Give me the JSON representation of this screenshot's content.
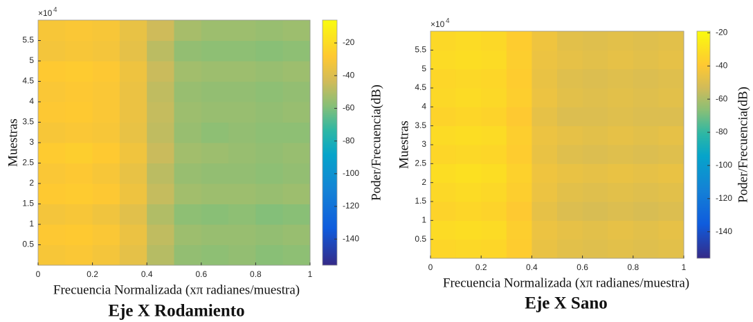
{
  "chart_data": [
    {
      "type": "spectrogram",
      "title": "Eje X Rodamiento",
      "x_label": "Frecuencia Normalizada  (xπ radianes/muestra)",
      "y_label": "Muestras",
      "colorbar_label": "Poder/Frecuencia(dB)",
      "y_exponent_label": {
        "base": "×10",
        "exponent": "4"
      },
      "xlim": [
        0,
        1
      ],
      "xticks": [
        0,
        0.2,
        0.4,
        0.6,
        0.8,
        1
      ],
      "ylim": [
        0,
        60000
      ],
      "yticks": [
        {
          "value": 5000,
          "label": "0.5"
        },
        {
          "value": 10000,
          "label": "1"
        },
        {
          "value": 15000,
          "label": "1.5"
        },
        {
          "value": 20000,
          "label": "2"
        },
        {
          "value": 25000,
          "label": "2.5"
        },
        {
          "value": 30000,
          "label": "3"
        },
        {
          "value": 35000,
          "label": "3.5"
        },
        {
          "value": 40000,
          "label": "4"
        },
        {
          "value": 45000,
          "label": "4.5"
        },
        {
          "value": 50000,
          "label": "5"
        },
        {
          "value": 55000,
          "label": "5.5"
        }
      ],
      "clim": [
        -156,
        -6
      ],
      "cticks": [
        -20,
        -40,
        -60,
        -80,
        -100,
        -120,
        -140
      ],
      "colormap": "parula",
      "xbins": [
        0,
        0.1,
        0.2,
        0.3,
        0.4,
        0.5,
        0.6,
        0.7,
        0.8,
        0.9,
        1
      ],
      "ybins": [
        0,
        5000,
        10000,
        15000,
        20000,
        25000,
        30000,
        35000,
        40000,
        45000,
        50000,
        55000,
        60000
      ],
      "z": [
        [
          -31,
          -30,
          -32,
          -37,
          -49,
          -56,
          -57,
          -56,
          -58,
          -57
        ],
        [
          -29,
          -28,
          -30,
          -35,
          -47,
          -54,
          -55,
          -55,
          -56,
          -55
        ],
        [
          -32,
          -31,
          -33,
          -38,
          -50,
          -57,
          -58,
          -57,
          -59,
          -58
        ],
        [
          -28,
          -27,
          -29,
          -34,
          -46,
          -53,
          -54,
          -54,
          -55,
          -54
        ],
        [
          -30,
          -29,
          -31,
          -36,
          -48,
          -55,
          -56,
          -56,
          -57,
          -56
        ],
        [
          -27,
          -26,
          -28,
          -33,
          -45,
          -53,
          -54,
          -55,
          -56,
          -55
        ],
        [
          -31,
          -30,
          -31,
          -36,
          -47,
          -55,
          -57,
          -56,
          -57,
          -57
        ],
        [
          -29,
          -28,
          -30,
          -35,
          -46,
          -54,
          -55,
          -55,
          -56,
          -55
        ],
        [
          -30,
          -29,
          -30,
          -35,
          -47,
          -55,
          -56,
          -56,
          -57,
          -56
        ],
        [
          -28,
          -27,
          -29,
          -34,
          -45,
          -53,
          -54,
          -54,
          -55,
          -54
        ],
        [
          -32,
          -31,
          -32,
          -37,
          -48,
          -56,
          -57,
          -57,
          -58,
          -57
        ],
        [
          -31,
          -30,
          -31,
          -36,
          -44,
          -52,
          -54,
          -54,
          -55,
          -54
        ]
      ]
    },
    {
      "type": "spectrogram",
      "title": "Eje X Sano",
      "x_label": "Frecuencia Normalizada  (xπ radianes/muestra)",
      "y_label": "Muestras",
      "colorbar_label": "Poder/Frecuencia(dB)",
      "y_exponent_label": {
        "base": "×10",
        "exponent": "4"
      },
      "xlim": [
        0,
        1
      ],
      "xticks": [
        0,
        0.2,
        0.4,
        0.6,
        0.8,
        1
      ],
      "ylim": [
        0,
        60000
      ],
      "yticks": [
        {
          "value": 5000,
          "label": "0.5"
        },
        {
          "value": 10000,
          "label": "1"
        },
        {
          "value": 15000,
          "label": "1.5"
        },
        {
          "value": 20000,
          "label": "2"
        },
        {
          "value": 25000,
          "label": "2.5"
        },
        {
          "value": 30000,
          "label": "3"
        },
        {
          "value": 35000,
          "label": "3.5"
        },
        {
          "value": 40000,
          "label": "4"
        },
        {
          "value": 45000,
          "label": "4.5"
        },
        {
          "value": 50000,
          "label": "5"
        },
        {
          "value": 55000,
          "label": "5.5"
        }
      ],
      "clim": [
        -156,
        -19
      ],
      "cticks": [
        -20,
        -40,
        -60,
        -80,
        -100,
        -120,
        -140
      ],
      "colormap": "parula",
      "xbins": [
        0,
        0.1,
        0.2,
        0.3,
        0.4,
        0.5,
        0.6,
        0.7,
        0.8,
        0.9,
        1
      ],
      "ybins": [
        0,
        5000,
        10000,
        15000,
        20000,
        25000,
        30000,
        35000,
        40000,
        45000,
        50000,
        55000,
        60000
      ],
      "z": [
        [
          -34,
          -33,
          -34,
          -38,
          -46,
          -48,
          -49,
          -48,
          -49,
          -48
        ],
        [
          -32,
          -31,
          -32,
          -37,
          -45,
          -47,
          -48,
          -47,
          -48,
          -47
        ],
        [
          -35,
          -34,
          -35,
          -39,
          -47,
          -50,
          -51,
          -50,
          -51,
          -50
        ],
        [
          -33,
          -32,
          -33,
          -37,
          -45,
          -48,
          -49,
          -48,
          -49,
          -48
        ],
        [
          -31,
          -30,
          -31,
          -36,
          -44,
          -46,
          -47,
          -46,
          -47,
          -46
        ],
        [
          -34,
          -33,
          -34,
          -38,
          -46,
          -49,
          -50,
          -49,
          -50,
          -49
        ],
        [
          -32,
          -31,
          -32,
          -37,
          -45,
          -47,
          -48,
          -47,
          -48,
          -47
        ],
        [
          -35,
          -34,
          -35,
          -39,
          -47,
          -50,
          -50,
          -49,
          -50,
          -50
        ],
        [
          -33,
          -32,
          -33,
          -37,
          -45,
          -48,
          -49,
          -48,
          -49,
          -48
        ],
        [
          -34,
          -33,
          -34,
          -38,
          -46,
          -49,
          -50,
          -49,
          -50,
          -49
        ],
        [
          -32,
          -31,
          -32,
          -37,
          -45,
          -47,
          -48,
          -47,
          -48,
          -47
        ],
        [
          -33,
          -32,
          -33,
          -38,
          -44,
          -48,
          -49,
          -48,
          -49,
          -48
        ]
      ]
    }
  ]
}
